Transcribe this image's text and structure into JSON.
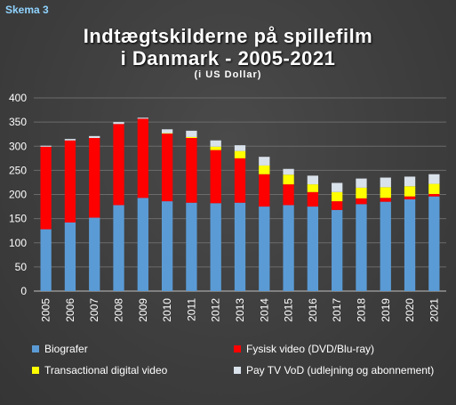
{
  "schema_label": "Skema 3",
  "chart_data": {
    "type": "bar",
    "stacked": true,
    "title_line1": "Indtægtskilderne på spillefilm",
    "title_line2": "i Danmark - 2005-2021",
    "subtitle": "(i US Dollar)",
    "categories": [
      "2005",
      "2006",
      "2007",
      "2008",
      "2009",
      "2010",
      "2011",
      "2012",
      "2013",
      "2014",
      "2015",
      "2016",
      "2017",
      "2018",
      "2019",
      "2020",
      "2021"
    ],
    "ylim": [
      0,
      400
    ],
    "yticks": [
      "0",
      "50",
      "100",
      "150",
      "200",
      "250",
      "300",
      "350",
      "400"
    ],
    "grid": true,
    "legend_placement": "bottom",
    "series": [
      {
        "name": "Biografer",
        "color": "#5b9bd5",
        "values": [
          128,
          142,
          152,
          178,
          193,
          186,
          183,
          182,
          183,
          175,
          178,
          175,
          168,
          180,
          185,
          190,
          196
        ]
      },
      {
        "name": "Fysisk video (DVD/Blu-ray)",
        "color": "#ff0000",
        "values": [
          171,
          170,
          165,
          168,
          164,
          140,
          134,
          110,
          92,
          67,
          43,
          30,
          18,
          12,
          8,
          6,
          5
        ]
      },
      {
        "name": "Transactional digital video",
        "color": "#ffff00",
        "values": [
          0,
          0,
          0,
          0,
          0,
          1,
          2,
          7,
          15,
          18,
          20,
          16,
          19,
          22,
          22,
          21,
          21
        ]
      },
      {
        "name": "Pay TV VoD (udlejning og abonnement)",
        "color": "#d9e1ea",
        "values": [
          2,
          3,
          4,
          4,
          2,
          8,
          13,
          13,
          12,
          18,
          12,
          18,
          19,
          19,
          20,
          20,
          20
        ]
      }
    ]
  }
}
